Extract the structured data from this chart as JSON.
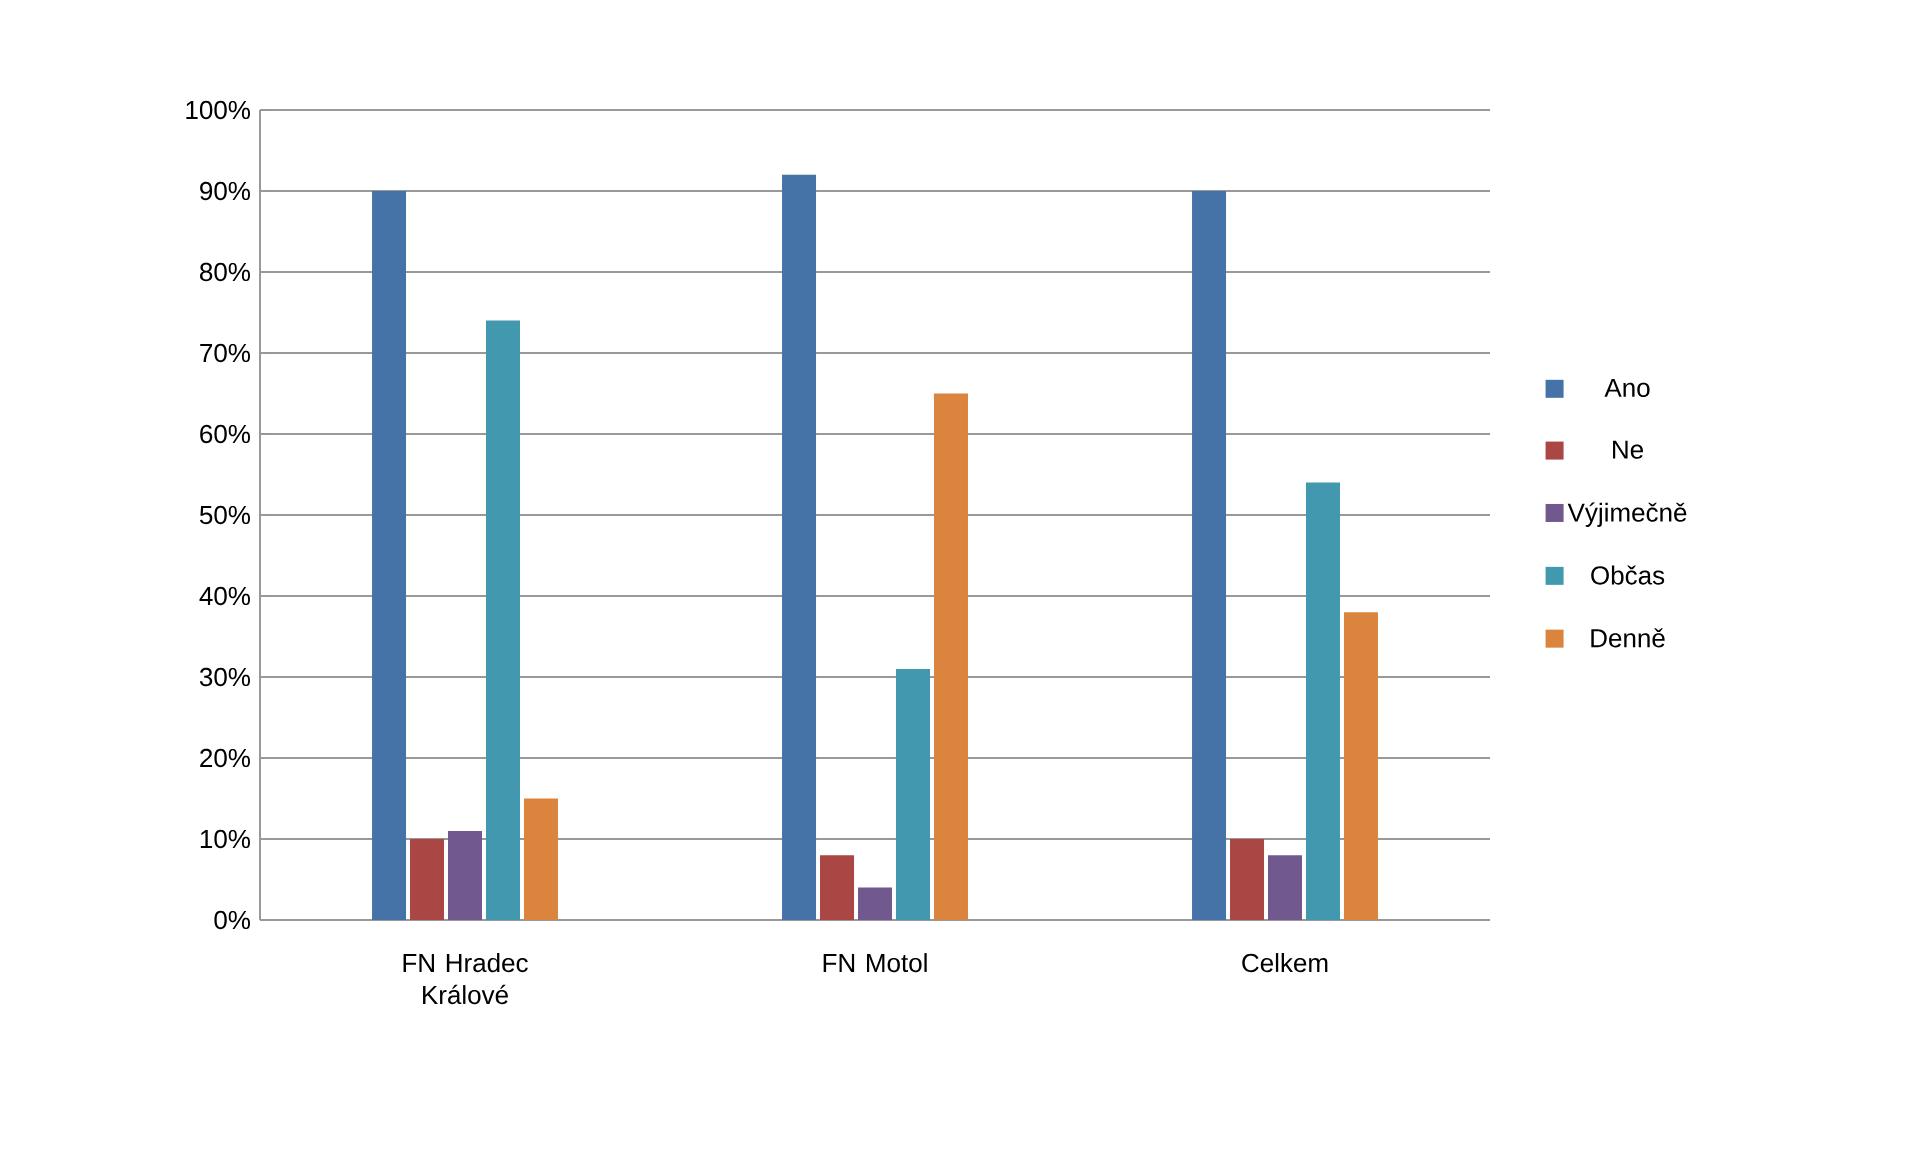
{
  "chart_data": {
    "type": "bar",
    "categories": [
      "FN Hradec Králové",
      "FN Motol",
      "Celkem"
    ],
    "series": [
      {
        "name": "Ano",
        "color": "#4572a7",
        "values": [
          90,
          92,
          90
        ]
      },
      {
        "name": "Ne",
        "color": "#aa4643",
        "values": [
          10,
          8,
          10
        ]
      },
      {
        "name": "Výjimečně",
        "color": "#71588f",
        "values": [
          11,
          4,
          8
        ]
      },
      {
        "name": "Občas",
        "color": "#4198af",
        "values": [
          74,
          31,
          54
        ]
      },
      {
        "name": "Denně",
        "color": "#db843d",
        "values": [
          15,
          65,
          38
        ]
      }
    ],
    "ylim": [
      0,
      100
    ],
    "yticks": [
      {
        "value": 0,
        "label": "0%"
      },
      {
        "value": 10,
        "label": "10%"
      },
      {
        "value": 20,
        "label": "20%"
      },
      {
        "value": 30,
        "label": "30%"
      },
      {
        "value": 40,
        "label": "40%"
      },
      {
        "value": 50,
        "label": "50%"
      },
      {
        "value": 60,
        "label": "60%"
      },
      {
        "value": 70,
        "label": "70%"
      },
      {
        "value": 80,
        "label": "80%"
      },
      {
        "value": 90,
        "label": "90%"
      },
      {
        "value": 100,
        "label": "100%"
      }
    ],
    "grid": "y",
    "legend": "right"
  }
}
